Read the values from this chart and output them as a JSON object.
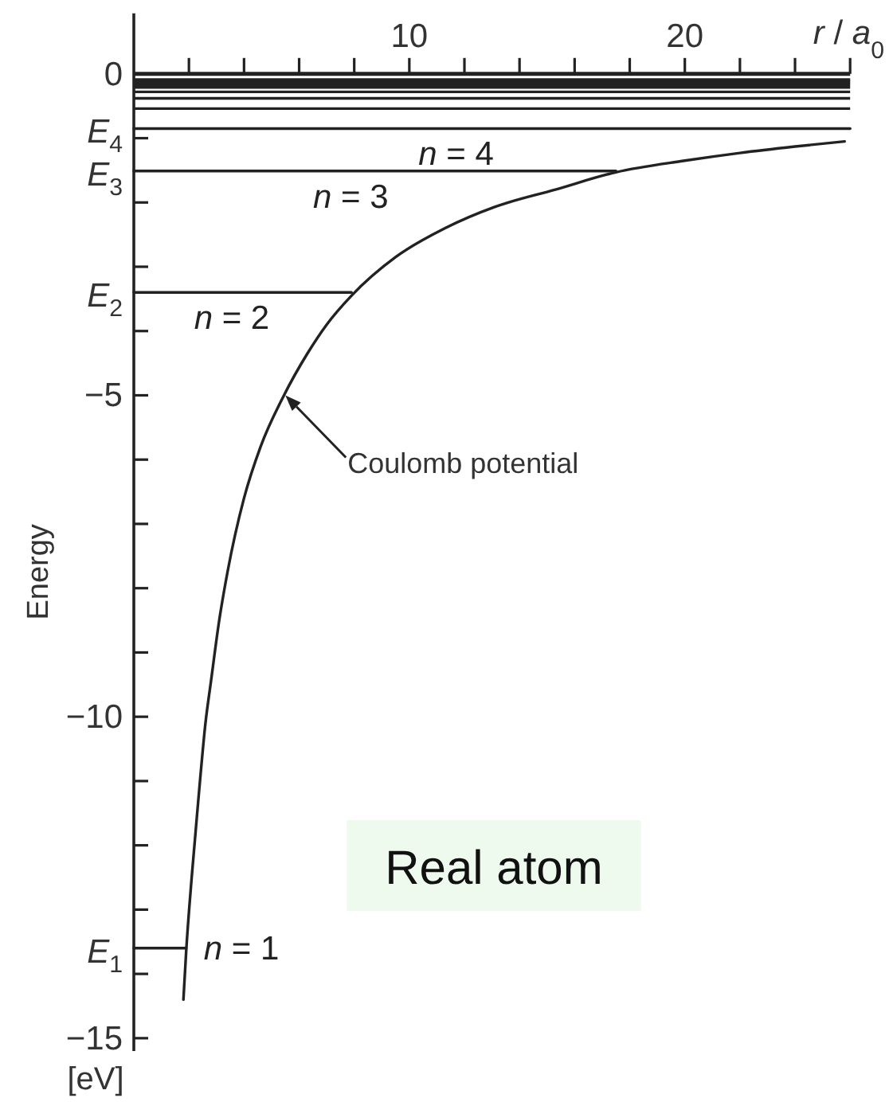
{
  "chart_data": {
    "type": "line",
    "xlabel": "r / a$_{0}$",
    "ylabel": "Energy",
    "xlim": [
      0,
      26
    ],
    "xticks": [
      {
        "value": 2,
        "label": null
      },
      {
        "value": 4,
        "label": null
      },
      {
        "value": 6,
        "label": null
      },
      {
        "value": 8,
        "label": null
      },
      10,
      {
        "value": 12,
        "label": null
      },
      {
        "value": 14,
        "label": null
      },
      {
        "value": 16,
        "label": null
      },
      {
        "value": 18,
        "label": null
      },
      20,
      {
        "value": 22,
        "label": null
      },
      {
        "value": 24,
        "label": null
      },
      {
        "value": 26,
        "label": null
      }
    ],
    "ylim": [
      -15.2,
      0
    ],
    "yticks": [
      0,
      {
        "value": -1,
        "label": null
      },
      {
        "value": -2,
        "label": null
      },
      {
        "value": -3,
        "label": null
      },
      {
        "value": -4,
        "label": null
      },
      -5,
      {
        "value": -6,
        "label": null
      },
      {
        "value": -7,
        "label": null
      },
      {
        "value": -8,
        "label": null
      },
      {
        "value": -9,
        "label": null
      },
      -10,
      {
        "value": -11,
        "label": null
      },
      {
        "value": -12,
        "label": null
      },
      {
        "value": -13,
        "label": null
      },
      {
        "value": -14,
        "label": null
      },
      -15
    ],
    "series": [
      {
        "color": "#222222",
        "x": [
          1.8,
          1.9,
          2.1,
          2.35,
          2.6,
          2.8,
          3.1,
          3.4,
          4.0,
          4.6,
          5.45,
          6.3,
          7.0,
          7.9,
          9.5,
          11.3,
          13.1,
          15.3,
          17.5,
          20,
          22,
          24,
          25.8
        ],
        "values": [
          -14.4,
          -13.65,
          -12.5,
          -11.25,
          -10.1,
          -9.45,
          -8.5,
          -7.75,
          -6.6,
          -5.8,
          -5.0,
          -4.35,
          -3.9,
          -3.45,
          -2.85,
          -2.4,
          -2.07,
          -1.8,
          -1.53,
          -1.35,
          -1.23,
          -1.13,
          -1.05
        ]
      },
      {
        "name": "n = 1",
        "color": "#222222",
        "x": [
          0,
          1.9
        ],
        "values": [
          -13.6,
          -13.6
        ]
      },
      {
        "name": "n = 2",
        "color": "#222222",
        "x": [
          0,
          7.9
        ],
        "values": [
          -3.4,
          -3.4
        ]
      },
      {
        "name": "n = 3",
        "color": "#222222",
        "x": [
          0,
          17.5
        ],
        "values": [
          -1.51,
          -1.51
        ]
      },
      {
        "name": "n = 4",
        "color": "#222222",
        "x": [
          0,
          26
        ],
        "values": [
          -0.85,
          -0.85
        ]
      }
    ],
    "ref_lines": [
      {
        "axis": "y",
        "value": -0.54
      },
      {
        "axis": "y",
        "value": -0.38
      },
      {
        "axis": "y",
        "value": -0.28
      },
      {
        "axis": "y",
        "value": -0.21
      },
      {
        "axis": "y",
        "value": -0.17
      },
      {
        "axis": "y",
        "value": -0.14
      },
      {
        "axis": "y",
        "value": -0.11
      },
      {
        "axis": "y",
        "value": -0.09
      }
    ],
    "annotations": [
      "E$_{1}$",
      "E$_{2}$",
      "E$_{3}$",
      "E$_{4}$",
      {
        "text": "Coulomb potential",
        "x": 5.5,
        "y": -5
      },
      "Real atom",
      "[eV]"
    ]
  }
}
